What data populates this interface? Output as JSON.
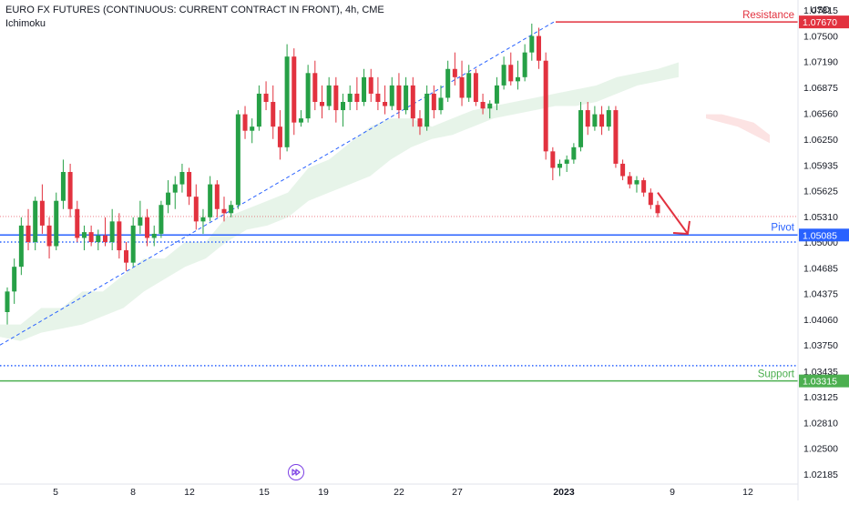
{
  "header": {
    "title": "EURO FX FUTURES (CONTINUOUS: CURRENT CONTRACT IN FRONT), 4h, CME",
    "indicator": "Ichimoku"
  },
  "axis": {
    "currency": "USD",
    "y_ticks": [
      "1.07815",
      "1.07500",
      "1.07190",
      "1.06875",
      "1.06560",
      "1.06250",
      "1.05935",
      "1.05625",
      "1.05310",
      "1.05000",
      "1.04685",
      "1.04375",
      "1.04060",
      "1.03750",
      "1.03435",
      "1.03125",
      "1.02810",
      "1.02500",
      "1.02185"
    ],
    "x_ticks": [
      "5",
      "8",
      "12",
      "15",
      "19",
      "22",
      "27",
      "2023",
      "9",
      "12"
    ]
  },
  "levels": {
    "resistance": {
      "name": "Resistance",
      "price": "1.07670",
      "value": 1.0767,
      "color": "#e2323f"
    },
    "pivot": {
      "name": "Pivot",
      "price": "1.05085",
      "value": 1.05085,
      "color": "#2962ff"
    },
    "support": {
      "name": "Support",
      "price": "1.03315",
      "value": 1.03315,
      "color": "#4caf50"
    }
  },
  "colors": {
    "up": "#26a046",
    "down": "#e2323f",
    "cloud_bull": "#e3f2e5",
    "cloud_bear": "#fce3e3",
    "trendline": "#2962ff",
    "replay": "#7b3fe4"
  },
  "controls": {
    "replay_icon": "fast-forward-icon"
  },
  "chart_data": {
    "type": "candlestick",
    "timeframe": "4h",
    "y_range": [
      1.0205,
      1.0795
    ],
    "x_ticks": [
      "5",
      "8",
      "12",
      "15",
      "19",
      "22",
      "27",
      "2023",
      "9",
      "12"
    ],
    "candles_ohlc": [
      [
        1.0415,
        1.0445,
        1.04,
        1.044
      ],
      [
        1.044,
        1.048,
        1.0425,
        1.047
      ],
      [
        1.047,
        1.053,
        1.046,
        1.052
      ],
      [
        1.052,
        1.054,
        1.049,
        1.05
      ],
      [
        1.05,
        1.0555,
        1.049,
        1.055
      ],
      [
        1.055,
        1.057,
        1.051,
        1.052
      ],
      [
        1.052,
        1.053,
        1.048,
        1.0495
      ],
      [
        1.0495,
        1.056,
        1.049,
        1.055
      ],
      [
        1.055,
        1.06,
        1.054,
        1.0585
      ],
      [
        1.0585,
        1.0595,
        1.053,
        1.054
      ],
      [
        1.054,
        1.055,
        1.05,
        1.0505
      ],
      [
        1.0505,
        1.052,
        1.049,
        1.0512
      ],
      [
        1.0512,
        1.052,
        1.0495,
        1.05
      ],
      [
        1.05,
        1.0515,
        1.049,
        1.0508
      ],
      [
        1.0508,
        1.053,
        1.0495,
        1.05
      ],
      [
        1.05,
        1.054,
        1.049,
        1.0525
      ],
      [
        1.0525,
        1.0535,
        1.048,
        1.049
      ],
      [
        1.049,
        1.05,
        1.0465,
        1.0475
      ],
      [
        1.0475,
        1.053,
        1.047,
        1.052
      ],
      [
        1.052,
        1.055,
        1.051,
        1.053
      ],
      [
        1.053,
        1.054,
        1.0495,
        1.0505
      ],
      [
        1.0505,
        1.052,
        1.0495,
        1.051
      ],
      [
        1.051,
        1.055,
        1.0505,
        1.0545
      ],
      [
        1.0545,
        1.0575,
        1.0535,
        1.056
      ],
      [
        1.056,
        1.058,
        1.054,
        1.057
      ],
      [
        1.057,
        1.0595,
        1.056,
        1.0585
      ],
      [
        1.0585,
        1.059,
        1.0545,
        1.0555
      ],
      [
        1.0555,
        1.057,
        1.0515,
        1.0525
      ],
      [
        1.0525,
        1.054,
        1.051,
        1.053
      ],
      [
        1.053,
        1.058,
        1.0525,
        1.057
      ],
      [
        1.057,
        1.0575,
        1.053,
        1.054
      ],
      [
        1.054,
        1.0555,
        1.0525,
        1.0535
      ],
      [
        1.0535,
        1.055,
        1.053,
        1.0545
      ],
      [
        1.0545,
        1.066,
        1.054,
        1.0655
      ],
      [
        1.0655,
        1.0665,
        1.0625,
        1.0635
      ],
      [
        1.0635,
        1.065,
        1.062,
        1.064
      ],
      [
        1.064,
        1.069,
        1.0635,
        1.068
      ],
      [
        1.068,
        1.0695,
        1.066,
        1.067
      ],
      [
        1.067,
        1.069,
        1.0625,
        1.064
      ],
      [
        1.064,
        1.066,
        1.06,
        1.0615
      ],
      [
        1.0615,
        1.074,
        1.061,
        1.0725
      ],
      [
        1.0725,
        1.0735,
        1.063,
        1.0645
      ],
      [
        1.0645,
        1.066,
        1.064,
        1.065
      ],
      [
        1.065,
        1.0715,
        1.0645,
        1.0705
      ],
      [
        1.0705,
        1.072,
        1.066,
        1.067
      ],
      [
        1.067,
        1.069,
        1.065,
        1.0665
      ],
      [
        1.0665,
        1.07,
        1.066,
        1.069
      ],
      [
        1.069,
        1.07,
        1.0645,
        1.066
      ],
      [
        1.066,
        1.068,
        1.064,
        1.067
      ],
      [
        1.067,
        1.069,
        1.066,
        1.068
      ],
      [
        1.068,
        1.07,
        1.066,
        1.067
      ],
      [
        1.067,
        1.071,
        1.0665,
        1.07
      ],
      [
        1.07,
        1.071,
        1.067,
        1.068
      ],
      [
        1.068,
        1.07,
        1.066,
        1.067
      ],
      [
        1.067,
        1.069,
        1.0655,
        1.0665
      ],
      [
        1.0665,
        1.07,
        1.066,
        1.069
      ],
      [
        1.069,
        1.0705,
        1.065,
        1.066
      ],
      [
        1.066,
        1.07,
        1.0655,
        1.069
      ],
      [
        1.069,
        1.07,
        1.064,
        1.065
      ],
      [
        1.065,
        1.066,
        1.063,
        1.064
      ],
      [
        1.064,
        1.069,
        1.0635,
        1.068
      ],
      [
        1.068,
        1.069,
        1.065,
        1.066
      ],
      [
        1.066,
        1.069,
        1.0655,
        1.0675
      ],
      [
        1.0675,
        1.072,
        1.067,
        1.071
      ],
      [
        1.071,
        1.073,
        1.069,
        1.07
      ],
      [
        1.07,
        1.072,
        1.0665,
        1.0675
      ],
      [
        1.0675,
        1.0715,
        1.067,
        1.0705
      ],
      [
        1.0705,
        1.071,
        1.0665,
        1.067
      ],
      [
        1.067,
        1.068,
        1.0655,
        1.0662
      ],
      [
        1.0662,
        1.0672,
        1.065,
        1.0668
      ],
      [
        1.0668,
        1.07,
        1.066,
        1.069
      ],
      [
        1.069,
        1.0725,
        1.0685,
        1.0715
      ],
      [
        1.0715,
        1.073,
        1.069,
        1.0695
      ],
      [
        1.0695,
        1.072,
        1.0685,
        1.07
      ],
      [
        1.07,
        1.074,
        1.0695,
        1.073
      ],
      [
        1.073,
        1.0765,
        1.072,
        1.075
      ],
      [
        1.075,
        1.076,
        1.071,
        1.072
      ],
      [
        1.072,
        1.073,
        1.06,
        1.061
      ],
      [
        1.061,
        1.0615,
        1.0575,
        1.059
      ],
      [
        1.059,
        1.06,
        1.058,
        1.0595
      ],
      [
        1.0595,
        1.0605,
        1.0585,
        1.06
      ],
      [
        1.06,
        1.062,
        1.0595,
        1.0615
      ],
      [
        1.0615,
        1.067,
        1.061,
        1.066
      ],
      [
        1.066,
        1.067,
        1.063,
        1.064
      ],
      [
        1.064,
        1.0665,
        1.0635,
        1.0655
      ],
      [
        1.0655,
        1.0665,
        1.063,
        1.064
      ],
      [
        1.064,
        1.0665,
        1.0635,
        1.066
      ],
      [
        1.066,
        1.0665,
        1.059,
        1.0595
      ],
      [
        1.0595,
        1.06,
        1.0575,
        1.058
      ],
      [
        1.058,
        1.0585,
        1.0565,
        1.057
      ],
      [
        1.057,
        1.058,
        1.056,
        1.0575
      ],
      [
        1.0575,
        1.0578,
        1.0555,
        1.056
      ],
      [
        1.056,
        1.0565,
        1.054,
        1.0545
      ],
      [
        1.0545,
        1.055,
        1.053,
        1.0535
      ]
    ],
    "resistance": 1.0767,
    "pivot": 1.05085,
    "support": 1.03315,
    "dotted_levels": [
      1.0531,
      1.05,
      1.035
    ],
    "trendline": {
      "from": 1.0375,
      "to": 1.0767
    },
    "forecast_target": 1.051,
    "ichimoku_cloud": {
      "upper": [
        1.04,
        1.04,
        1.042,
        1.042,
        1.044,
        1.044,
        1.046,
        1.048,
        1.048,
        1.05,
        1.05,
        1.053,
        1.054,
        1.055,
        1.056,
        1.059,
        1.06,
        1.062,
        1.064,
        1.065,
        1.065,
        1.064,
        1.065,
        1.066,
        1.0665,
        1.067,
        1.0675,
        1.068,
        1.0685,
        1.069,
        1.07,
        1.0705,
        1.071,
        1.0718
      ],
      "lower": [
        1.0385,
        1.038,
        1.039,
        1.0395,
        1.04,
        1.041,
        1.042,
        1.044,
        1.0455,
        1.047,
        1.048,
        1.05,
        1.0515,
        1.052,
        1.053,
        1.055,
        1.056,
        1.057,
        1.058,
        1.06,
        1.0615,
        1.0625,
        1.063,
        1.064,
        1.065,
        1.0655,
        1.066,
        1.0665,
        1.0665,
        1.067,
        1.068,
        1.069,
        1.0695,
        1.07
      ],
      "future_bearish": {
        "upper": [
          1.0655,
          1.0655,
          1.065,
          1.0645,
          1.063
        ],
        "lower": [
          1.065,
          1.0645,
          1.064,
          1.063,
          1.062
        ]
      }
    }
  }
}
